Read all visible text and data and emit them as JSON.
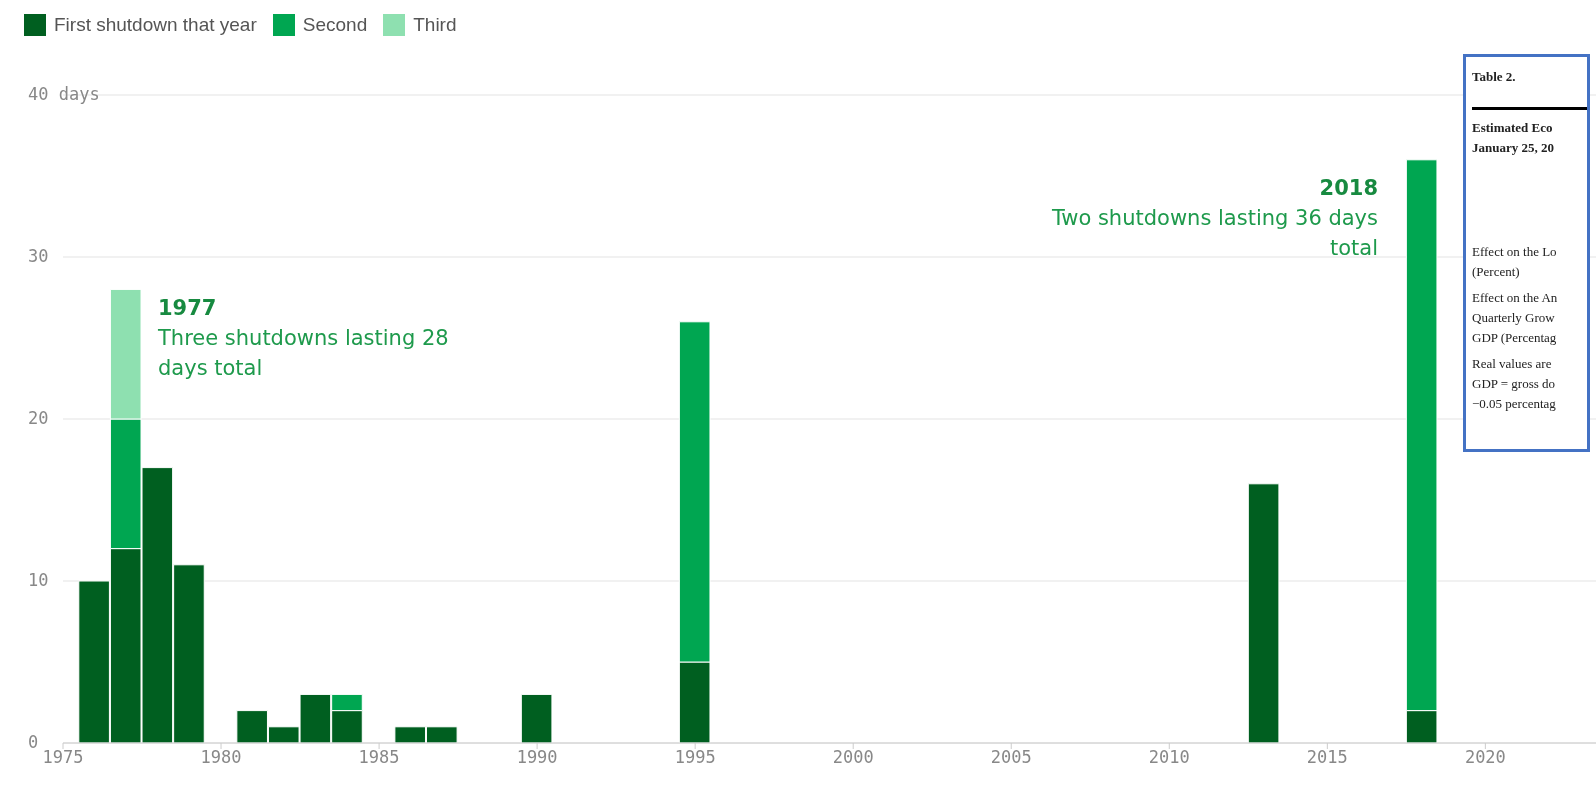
{
  "chart_data": {
    "type": "bar",
    "stacked": true,
    "x": [
      1976,
      1977,
      1978,
      1979,
      1981,
      1982,
      1983,
      1984,
      1986,
      1987,
      1990,
      1995,
      2013,
      2018
    ],
    "series": [
      {
        "name": "First shutdown that year",
        "color": "#005f20",
        "values": [
          10,
          12,
          17,
          11,
          2,
          1,
          3,
          2,
          1,
          1,
          3,
          5,
          16,
          2
        ]
      },
      {
        "name": "Second",
        "color": "#00a651",
        "values": [
          null,
          8,
          null,
          null,
          null,
          null,
          null,
          1,
          null,
          null,
          null,
          21,
          null,
          34
        ]
      },
      {
        "name": "Third",
        "color": "#8ee0b0",
        "values": [
          null,
          8,
          null,
          null,
          null,
          null,
          null,
          null,
          null,
          null,
          null,
          null,
          null,
          null
        ]
      }
    ],
    "xlim": [
      1975,
      2023.5
    ],
    "xticks": [
      1975,
      1980,
      1985,
      1990,
      1995,
      2000,
      2005,
      2010,
      2015,
      2020
    ],
    "ylim": [
      0,
      40
    ],
    "yticks": [
      0,
      10,
      20,
      30,
      {
        "value": 40,
        "label": "40 days"
      }
    ],
    "grid": "y",
    "legend": "top left",
    "annotations": [
      "1977",
      "Three shutdowns lasting 28 days total",
      "2018",
      "Two shutdowns lasting 36 days total",
      "Table 2.",
      "Estimated Eco",
      "January 25, 20",
      "Effect on the Lo",
      "(Percent)",
      "Effect on the An",
      "Quarterly Grow",
      "GDP (Percentag",
      "Real values are",
      "GDP = gross do",
      "−0.05 percentag"
    ]
  }
}
